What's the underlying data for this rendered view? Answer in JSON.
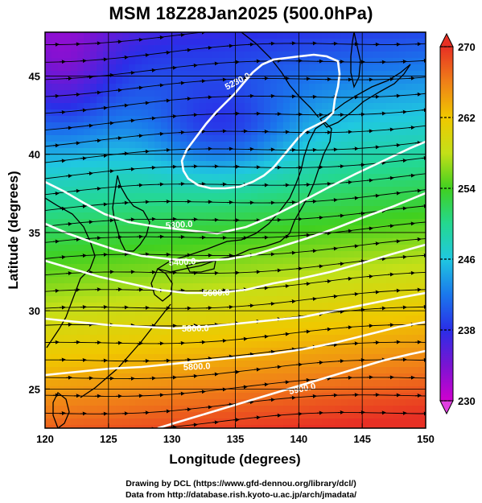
{
  "title": "MSM 18Z28Jan2025 (500.0hPa)",
  "x_axis": {
    "label": "Longitude (degrees)",
    "range": [
      120,
      150
    ],
    "ticks": [
      "120",
      "125",
      "130",
      "135",
      "140",
      "145",
      "150"
    ]
  },
  "y_axis": {
    "label": "Latitude  (degrees)",
    "range": [
      22.5,
      47.8
    ],
    "ticks": [
      "25",
      "30",
      "35",
      "40",
      "45"
    ]
  },
  "colorbar": {
    "range": [
      230,
      270
    ],
    "ticks": [
      "230",
      "238",
      "246",
      "254",
      "262",
      "270"
    ],
    "colors": [
      "#d000d0",
      "#7a14d2",
      "#2a2ee8",
      "#1a78ec",
      "#20c8e0",
      "#24d890",
      "#40d020",
      "#c4e018",
      "#f0c800",
      "#f08018",
      "#e83024"
    ]
  },
  "contours": {
    "color": "#ffffff",
    "labels": [
      "5280.0",
      "5300.0",
      "5400.0",
      "5600.0",
      "5800.0",
      "5800.0",
      "5900.0",
      "5900.0"
    ]
  },
  "credits": {
    "line1": "Drawing by DCL (https://www.gfd-dennou.org/library/dcl/)",
    "line2": "Data from http://database.rish.kyoto-u.ac.jp/arch/jmadata/"
  }
}
